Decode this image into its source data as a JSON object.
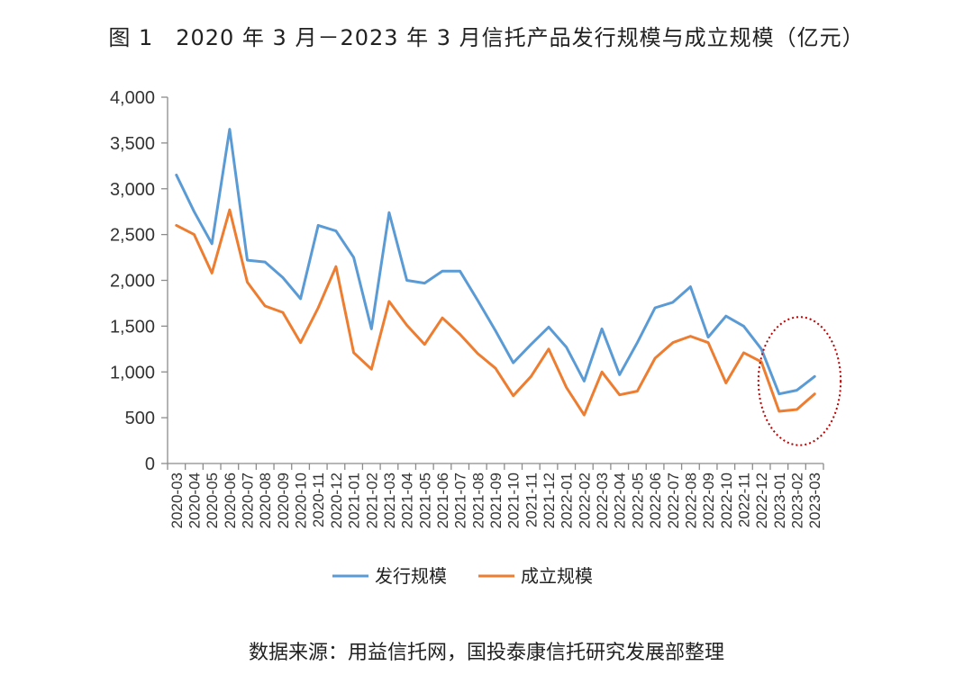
{
  "title": "图 1　2020 年 3 月－2023 年 3 月信托产品发行规模与成立规模（亿元）",
  "source": "数据来源：用益信托网，国投泰康信托研究发展部整理",
  "chart_data": {
    "type": "line",
    "title": "图 1　2020 年 3 月－2023 年 3 月信托产品发行规模与成立规模（亿元）",
    "xlabel": "",
    "ylabel": "",
    "ylim": [
      0,
      4000
    ],
    "yticks": [
      0,
      500,
      1000,
      1500,
      2000,
      2500,
      3000,
      3500,
      4000
    ],
    "ytick_labels": [
      "0",
      "500",
      "1,000",
      "1,500",
      "2,000",
      "2,500",
      "3,000",
      "3,500",
      "4,000"
    ],
    "grid": false,
    "legend_position": "bottom",
    "categories": [
      "2020-03",
      "2020-04",
      "2020-05",
      "2020-06",
      "2020-07",
      "2020-08",
      "2020-09",
      "2020-10",
      "2020-11",
      "2020-12",
      "2021-01",
      "2021-02",
      "2021-03",
      "2021-04",
      "2021-05",
      "2021-06",
      "2021-07",
      "2021-08",
      "2021-09",
      "2021-10",
      "2021-11",
      "2021-12",
      "2022-01",
      "2022-02",
      "2022-03",
      "2022-04",
      "2022-05",
      "2022-06",
      "2022-07",
      "2022-08",
      "2022-09",
      "2022-10",
      "2022-11",
      "2022-12",
      "2023-01",
      "2023-02",
      "2023-03"
    ],
    "series": [
      {
        "name": "发行规模",
        "color": "#5b9bd5",
        "values": [
          3150,
          2750,
          2400,
          3650,
          2220,
          2200,
          2030,
          1800,
          2600,
          2540,
          2250,
          1470,
          2740,
          2000,
          1970,
          2100,
          2100,
          1780,
          1450,
          1100,
          1300,
          1490,
          1270,
          900,
          1470,
          970,
          1320,
          1700,
          1760,
          1930,
          1380,
          1610,
          1500,
          1250,
          760,
          800,
          950
        ]
      },
      {
        "name": "成立规模",
        "color": "#ed7d31",
        "values": [
          2600,
          2500,
          2080,
          2770,
          1980,
          1720,
          1650,
          1320,
          1700,
          2150,
          1210,
          1030,
          1770,
          1510,
          1300,
          1590,
          1410,
          1200,
          1040,
          740,
          950,
          1250,
          830,
          530,
          1000,
          750,
          790,
          1150,
          1320,
          1390,
          1320,
          880,
          1210,
          1110,
          570,
          590,
          760
        ]
      }
    ],
    "annotation": {
      "shape": "dotted-ellipse",
      "color": "#c00000",
      "categories": [
        "2023-01",
        "2023-03"
      ]
    }
  }
}
